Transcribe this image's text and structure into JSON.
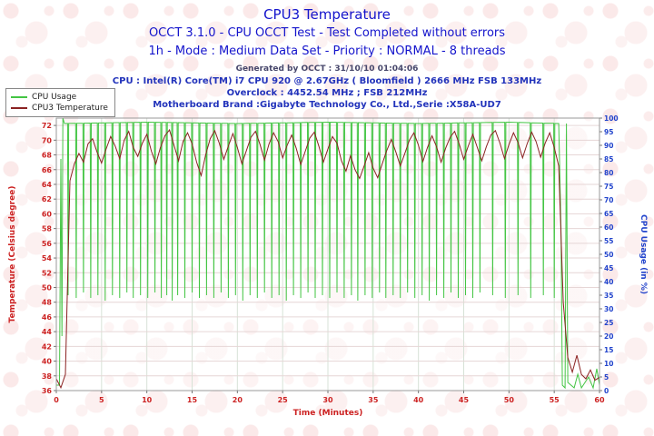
{
  "header": {
    "title": "CPU3 Temperature",
    "subtitle1": "OCCT 3.1.0 - CPU OCCT Test - Test Completed without errors",
    "subtitle2": "1h - Mode : Medium Data Set - Priority : NORMAL - 8 threads",
    "generated": "Generated by OCCT : 31/10/10 01:04:06",
    "cpu": "CPU : Intel(R) Core(TM) i7 CPU 920 @ 2.67GHz ( Bloomfield ) 2666 MHz FSB 133MHz",
    "overclock": "Overclock : 4452.54 MHz ; FSB 212MHz",
    "motherboard": "Motherboard Brand :Gigabyte Technology Co., Ltd.,Serie :X58A-UD7"
  },
  "legend": {
    "items": [
      {
        "label": "CPU Usage",
        "color": "#44c544"
      },
      {
        "label": "CPU3 Temperature",
        "color": "#8b2222"
      }
    ]
  },
  "chart_data": {
    "type": "line",
    "title": "CPU3 Temperature",
    "x": {
      "label": "Time (Minutes)",
      "min": 0,
      "max": 60,
      "tick_step": 5,
      "color": "#cc2222"
    },
    "y_left": {
      "label": "Temperature (Celsius degree)",
      "min": 36,
      "max": 73,
      "tick_min": 36,
      "tick_max": 72,
      "tick_step": 2,
      "color": "#cc2222"
    },
    "y_right": {
      "label": "CPU Usage (in %)",
      "min": 0,
      "max": 100,
      "tick_min": 0,
      "tick_max": 100,
      "tick_step": 5,
      "color": "#2244cc"
    },
    "grid": true,
    "legend_position": "top-left",
    "series": [
      {
        "name": "CPU Usage",
        "axis": "right",
        "color": "#44c544",
        "dip_halfwidth": 0.06,
        "segments": [
          [
            0,
            2
          ],
          [
            0.35,
            2
          ],
          [
            0.5,
            85
          ],
          [
            0.62,
            20
          ],
          [
            0.72,
            100
          ],
          [
            0.9,
            98
          ],
          [
            10,
            98.5
          ],
          [
            20,
            98
          ],
          [
            30,
            98.5
          ],
          [
            40,
            98
          ],
          [
            50,
            98.5
          ],
          [
            55.5,
            98
          ],
          [
            55.75,
            60
          ],
          [
            55.9,
            2
          ],
          [
            56.2,
            1
          ],
          [
            56.35,
            98
          ],
          [
            56.5,
            3
          ],
          [
            57.2,
            1
          ],
          [
            57.6,
            6
          ],
          [
            58,
            1
          ],
          [
            58.8,
            5
          ],
          [
            59.3,
            1
          ],
          [
            59.7,
            8
          ],
          [
            60,
            2
          ]
        ],
        "dips": [
          [
            1.3,
            35
          ],
          [
            2.2,
            34
          ],
          [
            3,
            36
          ],
          [
            3.8,
            34
          ],
          [
            4.6,
            35
          ],
          [
            5.4,
            33
          ],
          [
            6.2,
            35
          ],
          [
            7,
            34
          ],
          [
            7.8,
            36
          ],
          [
            8.5,
            34
          ],
          [
            9.3,
            35
          ],
          [
            10.1,
            34
          ],
          [
            10.9,
            36
          ],
          [
            11.6,
            34
          ],
          [
            12.2,
            35
          ],
          [
            12.8,
            33
          ],
          [
            13.4,
            35
          ],
          [
            14.2,
            34
          ],
          [
            15,
            36
          ],
          [
            15.8,
            34
          ],
          [
            16.6,
            35
          ],
          [
            17.4,
            34
          ],
          [
            18.2,
            36
          ],
          [
            19,
            34
          ],
          [
            19.8,
            35
          ],
          [
            20.6,
            33
          ],
          [
            21.4,
            35
          ],
          [
            22.2,
            34
          ],
          [
            23,
            36
          ],
          [
            23.8,
            34
          ],
          [
            24.6,
            35
          ],
          [
            25.4,
            33
          ],
          [
            26.2,
            35
          ],
          [
            27,
            34
          ],
          [
            27.8,
            36
          ],
          [
            28.6,
            34
          ],
          [
            29.4,
            35
          ],
          [
            30.2,
            34
          ],
          [
            31,
            36
          ],
          [
            31.8,
            34
          ],
          [
            32.6,
            35
          ],
          [
            33.3,
            33
          ],
          [
            34.1,
            35
          ],
          [
            34.9,
            34
          ],
          [
            35.7,
            36
          ],
          [
            36.4,
            34
          ],
          [
            37.2,
            35
          ],
          [
            38,
            34
          ],
          [
            38.8,
            36
          ],
          [
            39.6,
            34
          ],
          [
            40.4,
            35
          ],
          [
            41.2,
            33
          ],
          [
            42,
            35
          ],
          [
            42.8,
            34
          ],
          [
            43.6,
            36
          ],
          [
            44.4,
            34
          ],
          [
            45.2,
            35
          ],
          [
            46,
            34
          ],
          [
            46.8,
            36
          ],
          [
            48.2,
            35
          ],
          [
            49.6,
            34
          ],
          [
            51,
            35
          ],
          [
            52.4,
            34
          ],
          [
            53.8,
            35
          ],
          [
            55,
            34
          ]
        ]
      },
      {
        "name": "CPU3 Temperature",
        "axis": "left",
        "color": "#8b2222",
        "t_start": 0,
        "t_step": 0.5,
        "values": [
          37.6,
          36.4,
          38.2,
          64.5,
          66.8,
          68.2,
          67.0,
          69.5,
          70.2,
          68.4,
          66.9,
          68.8,
          70.5,
          69.2,
          67.5,
          70.0,
          71.2,
          69.0,
          67.8,
          69.6,
          70.8,
          68.5,
          66.8,
          69.0,
          70.6,
          71.4,
          69.3,
          67.2,
          69.8,
          71.0,
          69.5,
          67.0,
          65.2,
          68.0,
          70.2,
          71.3,
          69.6,
          67.4,
          69.2,
          70.9,
          69.0,
          66.8,
          68.6,
          70.4,
          71.2,
          69.4,
          67.3,
          69.5,
          71.0,
          69.8,
          67.6,
          69.3,
          70.7,
          68.9,
          66.7,
          68.5,
          70.3,
          71.1,
          69.2,
          67.0,
          68.8,
          70.5,
          69.6,
          67.2,
          65.8,
          67.9,
          66.0,
          64.8,
          66.5,
          68.3,
          66.2,
          64.9,
          66.8,
          68.6,
          70.1,
          68.4,
          66.5,
          68.2,
          70.0,
          71.0,
          69.3,
          67.1,
          69.0,
          70.6,
          69.1,
          67.0,
          68.9,
          70.4,
          71.2,
          69.5,
          67.4,
          69.2,
          70.8,
          69.0,
          67.2,
          69.1,
          70.7,
          71.3,
          69.6,
          67.5,
          69.4,
          71.0,
          69.7,
          67.6,
          69.5,
          71.1,
          69.8,
          67.7,
          69.6,
          71.0,
          69.0,
          66.5,
          48.0,
          40.5,
          38.5,
          40.8,
          38.2,
          37.6,
          38.8,
          37.4,
          37.8
        ]
      }
    ]
  }
}
